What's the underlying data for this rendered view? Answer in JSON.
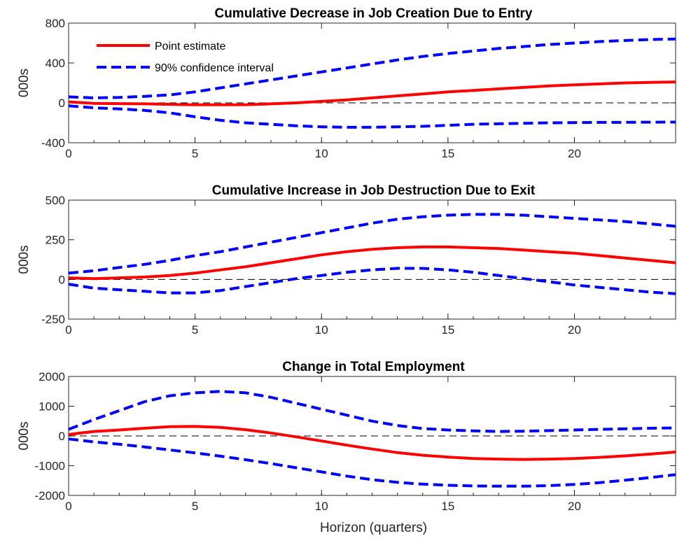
{
  "chart_data": [
    {
      "type": "line",
      "title": "Cumulative Decrease in Job Creation Due to Entry",
      "xlabel": "",
      "ylabel": "000s",
      "xlim": [
        0,
        24
      ],
      "ylim": [
        -400,
        800
      ],
      "xticks": [
        0,
        5,
        10,
        15,
        20
      ],
      "yticks": [
        -400,
        0,
        400,
        800
      ],
      "zero_line": true,
      "grid": false,
      "legend_position": "top-left",
      "x": [
        0,
        1,
        2,
        3,
        4,
        5,
        6,
        7,
        8,
        9,
        10,
        11,
        12,
        13,
        14,
        15,
        16,
        17,
        18,
        19,
        20,
        21,
        22,
        23,
        24
      ],
      "series": [
        {
          "name": "Point estimate",
          "style": "solid",
          "color": "#ff0000",
          "values": [
            10,
            -5,
            -8,
            -10,
            -15,
            -20,
            -20,
            -18,
            -10,
            0,
            15,
            30,
            50,
            70,
            90,
            110,
            125,
            140,
            155,
            170,
            180,
            190,
            200,
            205,
            210
          ]
        },
        {
          "name": "90% confidence interval",
          "style": "dashed",
          "color": "#0000ff",
          "band": "upper",
          "values": [
            60,
            50,
            55,
            65,
            80,
            110,
            150,
            190,
            230,
            270,
            310,
            350,
            390,
            430,
            465,
            495,
            520,
            545,
            565,
            585,
            600,
            615,
            625,
            635,
            640
          ]
        },
        {
          "name": "90% confidence interval",
          "style": "dashed",
          "color": "#0000ff",
          "band": "lower",
          "hide_legend": true,
          "values": [
            -30,
            -50,
            -60,
            -75,
            -100,
            -140,
            -175,
            -200,
            -215,
            -230,
            -240,
            -245,
            -245,
            -240,
            -235,
            -225,
            -215,
            -210,
            -205,
            -200,
            -198,
            -196,
            -195,
            -194,
            -193
          ]
        }
      ]
    },
    {
      "type": "line",
      "title": "Cumulative Increase in Job Destruction Due to Exit",
      "xlabel": "",
      "ylabel": "000s",
      "xlim": [
        0,
        24
      ],
      "ylim": [
        -250,
        500
      ],
      "xticks": [
        0,
        5,
        10,
        15,
        20
      ],
      "yticks": [
        -250,
        0,
        250,
        500
      ],
      "zero_line": true,
      "grid": false,
      "x": [
        0,
        1,
        2,
        3,
        4,
        5,
        6,
        7,
        8,
        9,
        10,
        11,
        12,
        13,
        14,
        15,
        16,
        17,
        18,
        19,
        20,
        21,
        22,
        23,
        24
      ],
      "series": [
        {
          "name": "Point estimate",
          "style": "solid",
          "color": "#ff0000",
          "values": [
            10,
            5,
            10,
            15,
            25,
            40,
            60,
            80,
            105,
            130,
            155,
            175,
            190,
            200,
            205,
            205,
            200,
            195,
            185,
            175,
            165,
            150,
            135,
            120,
            105
          ]
        },
        {
          "name": "90% confidence interval",
          "style": "dashed",
          "color": "#0000ff",
          "band": "upper",
          "values": [
            40,
            55,
            75,
            95,
            120,
            150,
            175,
            205,
            235,
            265,
            295,
            325,
            355,
            380,
            395,
            405,
            410,
            410,
            405,
            395,
            385,
            375,
            365,
            350,
            335
          ]
        },
        {
          "name": "90% confidence interval",
          "style": "dashed",
          "color": "#0000ff",
          "band": "lower",
          "values": [
            -30,
            -55,
            -65,
            -75,
            -85,
            -85,
            -70,
            -45,
            -20,
            5,
            25,
            45,
            60,
            70,
            70,
            60,
            45,
            25,
            5,
            -15,
            -35,
            -50,
            -65,
            -80,
            -90
          ]
        }
      ]
    },
    {
      "type": "line",
      "title": "Change in Total Employment",
      "xlabel": "Horizon (quarters)",
      "ylabel": "000s",
      "xlim": [
        0,
        24
      ],
      "ylim": [
        -2000,
        2000
      ],
      "xticks": [
        0,
        5,
        10,
        15,
        20
      ],
      "yticks": [
        -2000,
        -1000,
        0,
        1000,
        2000
      ],
      "zero_line": true,
      "grid": false,
      "x": [
        0,
        1,
        2,
        3,
        4,
        5,
        6,
        7,
        8,
        9,
        10,
        11,
        12,
        13,
        14,
        15,
        16,
        17,
        18,
        19,
        20,
        21,
        22,
        23,
        24
      ],
      "series": [
        {
          "name": "Point estimate",
          "style": "solid",
          "color": "#ff0000",
          "values": [
            50,
            150,
            200,
            260,
            310,
            320,
            290,
            210,
            100,
            -30,
            -170,
            -310,
            -440,
            -560,
            -650,
            -710,
            -760,
            -780,
            -790,
            -780,
            -760,
            -720,
            -670,
            -610,
            -540
          ]
        },
        {
          "name": "90% confidence interval",
          "style": "dashed",
          "color": "#0000ff",
          "band": "upper",
          "values": [
            220,
            550,
            850,
            1150,
            1350,
            1450,
            1500,
            1450,
            1300,
            1100,
            900,
            700,
            500,
            350,
            250,
            200,
            170,
            150,
            160,
            180,
            200,
            220,
            240,
            260,
            270
          ]
        },
        {
          "name": "90% confidence interval",
          "style": "dashed",
          "color": "#0000ff",
          "band": "lower",
          "values": [
            -100,
            -200,
            -280,
            -370,
            -470,
            -570,
            -680,
            -800,
            -930,
            -1070,
            -1210,
            -1350,
            -1470,
            -1560,
            -1620,
            -1660,
            -1680,
            -1690,
            -1690,
            -1670,
            -1630,
            -1570,
            -1490,
            -1400,
            -1300
          ]
        }
      ]
    }
  ]
}
